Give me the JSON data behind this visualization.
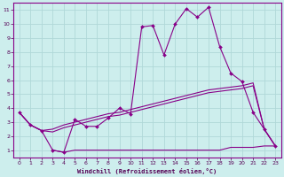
{
  "xlabel": "Windchill (Refroidissement éolien,°C)",
  "bg_color": "#cdeeed",
  "grid_color": "#b0d8d8",
  "line_color": "#880088",
  "xlim": [
    -0.5,
    23.5
  ],
  "ylim": [
    0.5,
    11.5
  ],
  "xticks": [
    0,
    1,
    2,
    3,
    4,
    5,
    6,
    7,
    8,
    9,
    10,
    11,
    12,
    13,
    14,
    15,
    16,
    17,
    18,
    19,
    20,
    21,
    22,
    23
  ],
  "yticks": [
    1,
    2,
    3,
    4,
    5,
    6,
    7,
    8,
    9,
    10,
    11
  ],
  "series1_x": [
    0,
    1,
    2,
    3,
    4,
    5,
    6,
    7,
    8,
    9,
    10,
    11,
    12,
    13,
    14,
    15,
    16,
    17,
    18,
    19,
    20,
    21,
    22,
    23
  ],
  "series1_y": [
    3.7,
    2.8,
    2.4,
    1.0,
    0.85,
    3.2,
    2.7,
    2.7,
    3.3,
    4.0,
    3.6,
    9.8,
    9.9,
    7.8,
    10.0,
    11.1,
    10.5,
    11.2,
    8.4,
    6.5,
    5.9,
    3.7,
    2.5,
    1.3
  ],
  "series2_x": [
    0,
    1,
    2,
    3,
    4,
    5,
    6,
    7,
    8,
    9,
    10,
    11,
    12,
    13,
    14,
    15,
    16,
    17,
    18,
    19,
    20,
    21,
    22,
    23
  ],
  "series2_y": [
    3.7,
    2.8,
    2.4,
    2.5,
    2.8,
    3.0,
    3.2,
    3.4,
    3.6,
    3.7,
    3.9,
    4.1,
    4.3,
    4.5,
    4.7,
    4.9,
    5.1,
    5.3,
    5.4,
    5.5,
    5.6,
    5.8,
    2.5,
    1.3
  ],
  "series3_x": [
    0,
    1,
    2,
    3,
    4,
    5,
    6,
    7,
    8,
    9,
    10,
    11,
    12,
    13,
    14,
    15,
    16,
    17,
    18,
    19,
    20,
    21,
    22,
    23
  ],
  "series3_y": [
    3.7,
    2.8,
    2.4,
    2.3,
    2.6,
    2.8,
    3.0,
    3.2,
    3.4,
    3.5,
    3.7,
    3.9,
    4.1,
    4.3,
    4.5,
    4.7,
    4.9,
    5.1,
    5.2,
    5.3,
    5.4,
    5.6,
    2.5,
    1.3
  ],
  "series4_x": [
    3,
    4,
    5,
    6,
    7,
    8,
    9,
    10,
    11,
    12,
    13,
    14,
    15,
    16,
    17,
    18,
    19,
    20,
    21,
    22,
    23
  ],
  "series4_y": [
    1.0,
    0.85,
    1.0,
    1.0,
    1.0,
    1.0,
    1.0,
    1.0,
    1.0,
    1.0,
    1.0,
    1.0,
    1.0,
    1.0,
    1.0,
    1.0,
    1.2,
    1.2,
    1.2,
    1.3,
    1.3
  ]
}
